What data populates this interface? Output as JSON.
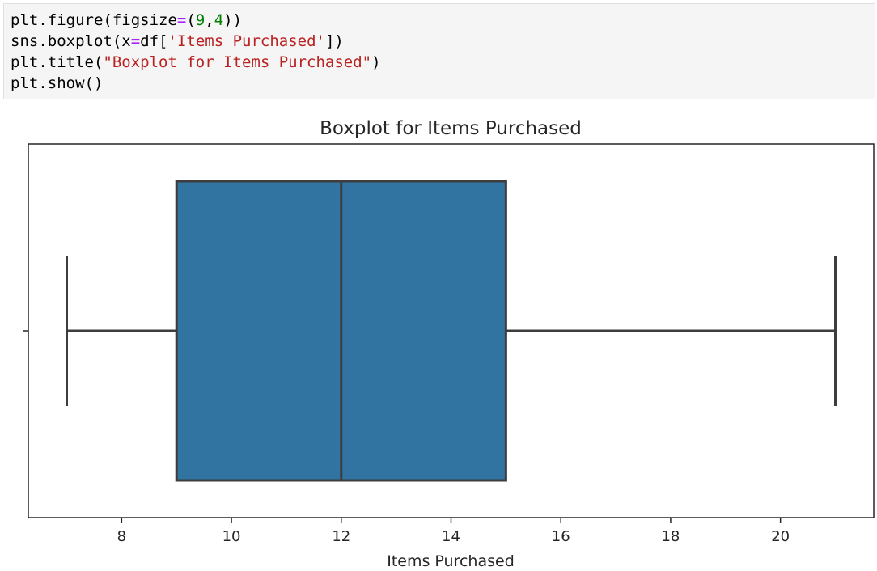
{
  "code_cell": {
    "lines": [
      [
        {
          "t": "plt.figure(figsize",
          "c": ""
        },
        {
          "t": "=",
          "c": "tok-eq"
        },
        {
          "t": "(",
          "c": ""
        },
        {
          "t": "9",
          "c": "tok-num"
        },
        {
          "t": ",",
          "c": ""
        },
        {
          "t": "4",
          "c": "tok-num"
        },
        {
          "t": "))",
          "c": ""
        }
      ],
      [
        {
          "t": "sns.boxplot(x",
          "c": ""
        },
        {
          "t": "=",
          "c": "tok-eq"
        },
        {
          "t": "df[",
          "c": ""
        },
        {
          "t": "'Items Purchased'",
          "c": "tok-str"
        },
        {
          "t": "])",
          "c": ""
        }
      ],
      [
        {
          "t": "plt.title(",
          "c": ""
        },
        {
          "t": "\"Boxplot for Items Purchased\"",
          "c": "tok-str"
        },
        {
          "t": ")",
          "c": ""
        }
      ],
      [
        {
          "t": "plt.show()",
          "c": ""
        }
      ]
    ]
  },
  "chart_data": {
    "type": "boxplot",
    "title": "Boxplot for Items Purchased",
    "xlabel": "Items Purchased",
    "ylabel": "",
    "xlim": [
      6.3,
      21.7
    ],
    "xticks": [
      8,
      10,
      12,
      14,
      16,
      18,
      20
    ],
    "box": {
      "whisker_low": 7,
      "q1": 9,
      "median": 12,
      "q3": 15,
      "whisker_high": 21
    },
    "box_color": "#3274a1",
    "line_color": "#3d3d3d",
    "grid": false,
    "legend": "none"
  }
}
